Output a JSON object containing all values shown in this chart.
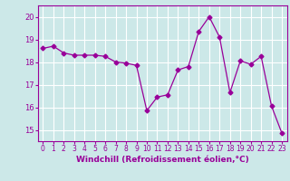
{
  "x": [
    0,
    1,
    2,
    3,
    4,
    5,
    6,
    7,
    8,
    9,
    10,
    11,
    12,
    13,
    14,
    15,
    16,
    17,
    18,
    19,
    20,
    21,
    22,
    23
  ],
  "y": [
    18.6,
    18.7,
    18.4,
    18.3,
    18.3,
    18.3,
    18.25,
    18.0,
    17.95,
    17.85,
    15.85,
    16.45,
    16.55,
    17.65,
    17.8,
    19.35,
    20.0,
    19.1,
    16.65,
    18.05,
    17.9,
    18.25,
    16.05,
    14.85
  ],
  "line_color": "#990099",
  "marker": "D",
  "marker_size": 2.5,
  "bg_color": "#cce8e8",
  "grid_color": "#ffffff",
  "xlabel": "Windchill (Refroidissement éolien,°C)",
  "xlabel_color": "#990099",
  "tick_color": "#990099",
  "ylim": [
    14.5,
    20.5
  ],
  "yticks": [
    15,
    16,
    17,
    18,
    19,
    20
  ],
  "xticks": [
    0,
    1,
    2,
    3,
    4,
    5,
    6,
    7,
    8,
    9,
    10,
    11,
    12,
    13,
    14,
    15,
    16,
    17,
    18,
    19,
    20,
    21,
    22,
    23
  ],
  "tick_fontsize": 5.5,
  "xlabel_fontsize": 6.5,
  "ytick_fontsize": 6.0
}
